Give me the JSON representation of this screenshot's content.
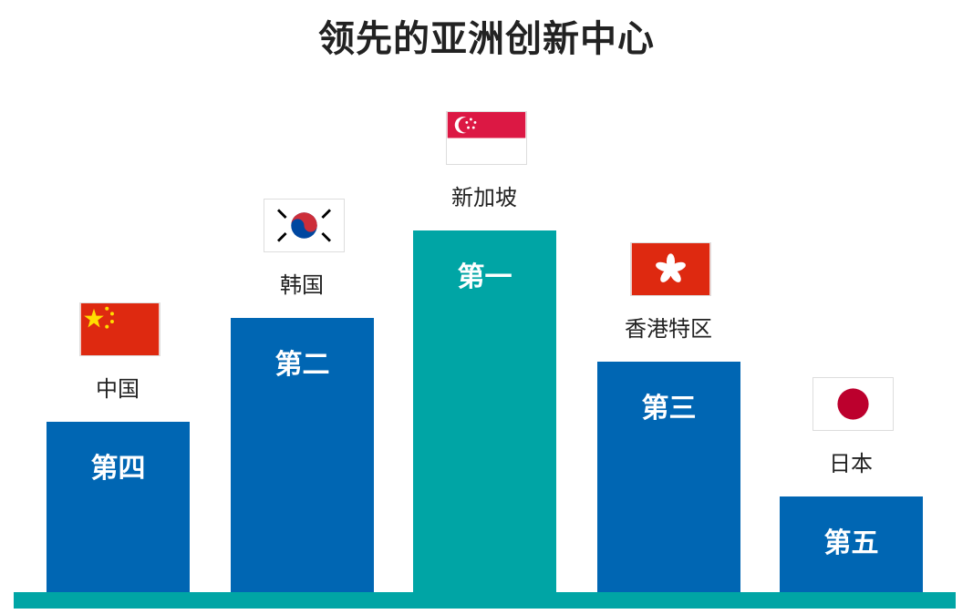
{
  "chart_data": {
    "type": "bar",
    "title": "领先的亚洲创新中心",
    "categories": [
      "中国",
      "韩国",
      "新加坡",
      "香港特区",
      "日本"
    ],
    "ranks": [
      4,
      2,
      1,
      3,
      5
    ],
    "rank_labels": [
      "第四",
      "第二",
      "第一",
      "第三",
      "第五"
    ],
    "flags": [
      "china-flag",
      "south-korea-flag",
      "singapore-flag",
      "hong-kong-flag",
      "japan-flag"
    ],
    "colors": {
      "bar": "#0066b3",
      "first_place": "#00a5a5",
      "base": "#00a5a5"
    }
  }
}
